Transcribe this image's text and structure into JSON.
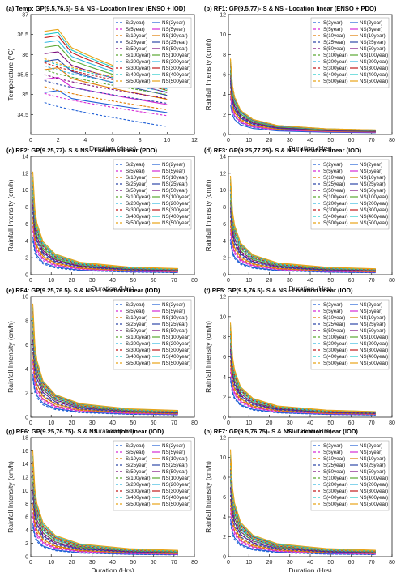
{
  "legend_labels": {
    "S": [
      "S(2year)",
      "S(5year)",
      "S(10year)",
      "S(25year)",
      "S(50year)",
      "S(100year)",
      "S(200year)",
      "S(300year)",
      "S(400year)",
      "S(500year)"
    ],
    "NS": [
      "NS(2year)",
      "NS(5year)",
      "NS(10year)",
      "NS(25year)",
      "NS(50year)",
      "NS(100year)",
      "NS(200year)",
      "NS(300year)",
      "NS(400year)",
      "NS(500year)"
    ]
  },
  "series_colors": [
    "#1f5fd6",
    "#d62ad6",
    "#e07b00",
    "#2f48a8",
    "#7a0a7a",
    "#5aa832",
    "#33b8e0",
    "#c21a1a",
    "#22c9c9",
    "#e8a317"
  ],
  "chart_data": [
    {
      "type": "line",
      "panel": "a",
      "title": "(a) Temp: GP(9.5,76.5)- S & NS - Location linear (ENSO + IOD)",
      "xlabel": "Duration (days)",
      "ylabel": "Temperature (°C)",
      "xlim": [
        0,
        12
      ],
      "ylim": [
        34,
        37
      ],
      "xticks": [
        0,
        2,
        4,
        6,
        8,
        10,
        12
      ],
      "yticks": [
        34.5,
        35,
        35.5,
        36,
        36.5,
        37
      ],
      "legend_position": "top-right",
      "x": [
        1,
        2,
        3,
        4,
        5,
        6,
        7,
        8,
        9,
        10
      ],
      "s_start": [
        34.8,
        35.03,
        35.2,
        35.35,
        35.5,
        35.62,
        35.72,
        35.8,
        35.86,
        35.9
      ],
      "s_end": [
        34.2,
        34.47,
        34.62,
        34.78,
        34.9,
        35.0,
        35.07,
        35.12,
        35.16,
        35.18
      ],
      "ns_start": [
        35.05,
        35.38,
        35.62,
        35.83,
        36.02,
        36.18,
        36.3,
        36.42,
        36.5,
        36.58
      ],
      "ns_end": [
        34.55,
        34.75,
        34.88,
        34.98,
        35.05,
        35.1,
        35.14,
        35.17,
        35.2,
        35.22
      ]
    },
    {
      "type": "line",
      "panel": "b",
      "title": "(b) RF1: GP(9.5,77)- S & NS - Location linear (ENSO + PDO)",
      "xlabel": "Duration (Hrs)",
      "ylabel": "Rainfall Intensity (cm/h)",
      "xlim": [
        0,
        80
      ],
      "ylim": [
        0,
        12
      ],
      "xticks": [
        0,
        10,
        20,
        30,
        40,
        50,
        60,
        70,
        80
      ],
      "yticks": [
        0,
        2,
        4,
        6,
        8,
        10,
        12
      ],
      "legend_position": "top-right",
      "x": [
        1,
        2,
        3,
        6,
        12,
        24,
        48,
        72
      ],
      "shape": [
        1.0,
        0.64,
        0.5,
        0.32,
        0.2,
        0.12,
        0.075,
        0.06
      ],
      "s_peak": [
        3.6,
        4.2,
        4.8,
        5.4,
        5.9,
        6.4,
        6.9,
        7.2,
        7.4,
        7.6
      ],
      "ns_peak": [
        3.0,
        3.8,
        4.4,
        5.1,
        5.7,
        6.3,
        6.8,
        7.1,
        7.3,
        7.5
      ]
    },
    {
      "type": "line",
      "panel": "c",
      "title": "(c) RF2: GP(9.25,77)- S & NS - Location linear (PDO)",
      "xlabel": "Duration (Hrs)",
      "ylabel": "Rainfall Intensity (cm/h)",
      "xlim": [
        0,
        80
      ],
      "ylim": [
        0,
        14
      ],
      "xticks": [
        0,
        10,
        20,
        30,
        40,
        50,
        60,
        70,
        80
      ],
      "yticks": [
        0,
        2,
        4,
        6,
        8,
        10,
        12,
        14
      ],
      "legend_position": "top-right",
      "x": [
        1,
        2,
        3,
        6,
        12,
        24,
        48,
        72
      ],
      "shape": [
        1.0,
        0.64,
        0.5,
        0.32,
        0.2,
        0.12,
        0.075,
        0.06
      ],
      "s_peak": [
        4.0,
        5.2,
        6.2,
        7.4,
        8.3,
        9.2,
        10.0,
        10.5,
        10.9,
        11.2
      ],
      "ns_peak": [
        4.5,
        5.8,
        6.8,
        8.0,
        8.9,
        9.8,
        10.6,
        11.1,
        11.6,
        12.2
      ]
    },
    {
      "type": "line",
      "panel": "d",
      "title": "(d) RF3: GP(9.25,77.25)- S & NS - Location linear (IOD)",
      "xlabel": "Duration (Hrs)",
      "ylabel": "Rainfall Intensity (cm/h)",
      "xlim": [
        0,
        80
      ],
      "ylim": [
        0,
        14
      ],
      "xticks": [
        0,
        10,
        20,
        30,
        40,
        50,
        60,
        70,
        80
      ],
      "yticks": [
        0,
        2,
        4,
        6,
        8,
        10,
        12,
        14
      ],
      "legend_position": "top-right",
      "x": [
        1,
        2,
        3,
        6,
        12,
        24,
        48,
        72
      ],
      "shape": [
        1.0,
        0.64,
        0.5,
        0.32,
        0.2,
        0.12,
        0.075,
        0.06
      ],
      "s_peak": [
        3.8,
        4.9,
        5.8,
        7.0,
        7.9,
        8.8,
        9.6,
        10.1,
        10.5,
        10.8
      ],
      "ns_peak": [
        4.2,
        5.4,
        6.4,
        7.6,
        8.6,
        9.5,
        10.4,
        10.9,
        11.3,
        11.7
      ]
    },
    {
      "type": "line",
      "panel": "e",
      "title": "(e) RF4: GP(9.25,76.5)- S & NS - Location linear (IOD)",
      "xlabel": "Duration (Hrs)",
      "ylabel": "Rainfall Intensity (cm/h)",
      "xlim": [
        0,
        80
      ],
      "ylim": [
        0,
        10
      ],
      "xticks": [
        0,
        10,
        20,
        30,
        40,
        50,
        60,
        70,
        80
      ],
      "yticks": [
        0,
        2,
        4,
        6,
        8,
        10
      ],
      "legend_position": "top-right",
      "x": [
        1,
        2,
        3,
        6,
        12,
        24,
        48,
        72
      ],
      "shape": [
        1.0,
        0.64,
        0.5,
        0.32,
        0.2,
        0.12,
        0.075,
        0.06
      ],
      "s_peak": [
        3.2,
        4.1,
        4.8,
        5.7,
        6.4,
        7.0,
        7.6,
        7.9,
        8.2,
        8.4
      ],
      "ns_peak": [
        3.6,
        4.6,
        5.4,
        6.4,
        7.1,
        7.8,
        8.4,
        8.8,
        9.1,
        9.4
      ]
    },
    {
      "type": "line",
      "panel": "f",
      "title": "(f) RF5: GP(9.5,76.5)- S & NS - Location linear (IOD)",
      "xlabel": "Duration (Hrs)",
      "ylabel": "Rainfall Intensity (cm/h)",
      "xlim": [
        0,
        80
      ],
      "ylim": [
        0,
        12
      ],
      "xticks": [
        0,
        10,
        20,
        30,
        40,
        50,
        60,
        70,
        80
      ],
      "yticks": [
        0,
        2,
        4,
        6,
        8,
        10,
        12
      ],
      "legend_position": "top-right",
      "x": [
        1,
        2,
        3,
        6,
        12,
        24,
        48,
        72
      ],
      "shape": [
        1.0,
        0.64,
        0.5,
        0.32,
        0.2,
        0.12,
        0.075,
        0.06
      ],
      "s_peak": [
        3.6,
        4.5,
        5.2,
        6.1,
        6.8,
        7.4,
        8.0,
        8.3,
        8.6,
        8.8
      ],
      "ns_peak": [
        3.9,
        4.9,
        5.7,
        6.6,
        7.3,
        8.0,
        8.6,
        8.9,
        9.2,
        9.4
      ]
    },
    {
      "type": "line",
      "panel": "g",
      "title": "(g) RF6: GP(9.25,76.75)- S & NS - Location linear (IOD)",
      "xlabel": "Duration (Hrs)",
      "ylabel": "Rainfall Intensity (cm/h)",
      "xlim": [
        0,
        80
      ],
      "ylim": [
        0,
        18
      ],
      "xticks": [
        0,
        10,
        20,
        30,
        40,
        50,
        60,
        70,
        80
      ],
      "yticks": [
        0,
        2,
        4,
        6,
        8,
        10,
        12,
        14,
        16,
        18
      ],
      "legend_position": "top-right",
      "x": [
        1,
        2,
        3,
        6,
        12,
        24,
        48,
        72
      ],
      "shape": [
        1.0,
        0.64,
        0.5,
        0.32,
        0.2,
        0.12,
        0.075,
        0.06
      ],
      "s_peak": [
        4.5,
        6.0,
        7.3,
        8.9,
        10.1,
        11.3,
        12.4,
        13.0,
        13.5,
        14.0
      ],
      "ns_peak": [
        5.0,
        6.7,
        8.1,
        9.8,
        11.1,
        12.4,
        13.6,
        14.4,
        15.2,
        16.0
      ]
    },
    {
      "type": "line",
      "panel": "h",
      "title": "(h) RF7: GP(9.5,76.75)- S & NS - Location linear (IOD)",
      "xlabel": "Duration (Hrs)",
      "ylabel": "Rainfall Intensity (cm/h)",
      "xlim": [
        0,
        80
      ],
      "ylim": [
        0,
        12
      ],
      "xticks": [
        0,
        10,
        20,
        30,
        40,
        50,
        60,
        70,
        80
      ],
      "yticks": [
        0,
        2,
        4,
        6,
        8,
        10,
        12
      ],
      "legend_position": "top-right",
      "x": [
        1,
        2,
        3,
        6,
        12,
        24,
        48,
        72
      ],
      "shape": [
        1.0,
        0.64,
        0.5,
        0.32,
        0.2,
        0.12,
        0.075,
        0.06
      ],
      "s_peak": [
        3.4,
        4.4,
        5.2,
        6.2,
        7.0,
        7.7,
        8.4,
        8.8,
        9.1,
        9.4
      ],
      "ns_peak": [
        3.8,
        4.9,
        5.8,
        6.9,
        7.8,
        8.6,
        9.4,
        9.9,
        10.3,
        10.8
      ]
    }
  ]
}
